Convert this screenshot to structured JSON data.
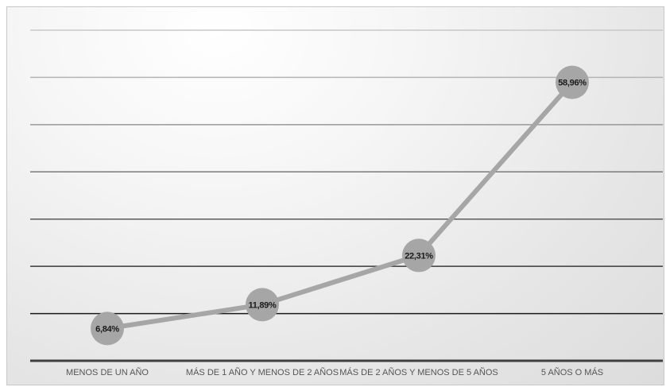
{
  "chart_data": {
    "type": "line",
    "categories": [
      "MENOS DE UN AÑO",
      "MÁS DE 1 AÑO Y MENOS DE 2 AÑOS",
      "MÁS DE 2 AÑOS Y MENOS DE 5 AÑOS",
      "5 AÑOS O MÁS"
    ],
    "series": [
      {
        "values": [
          6.84,
          11.89,
          22.31,
          58.96
        ],
        "labels": [
          "6,84%",
          "11,89%",
          "22,31%",
          "58,96%"
        ]
      }
    ],
    "ylim": [
      0,
      70
    ],
    "grid": true,
    "legend": "none",
    "colors": {
      "line": "#a6a6a6",
      "marker": "#a6a6a6",
      "label_text": "#1a1a1a",
      "category_text": "#555555",
      "axis": "#404040"
    }
  }
}
